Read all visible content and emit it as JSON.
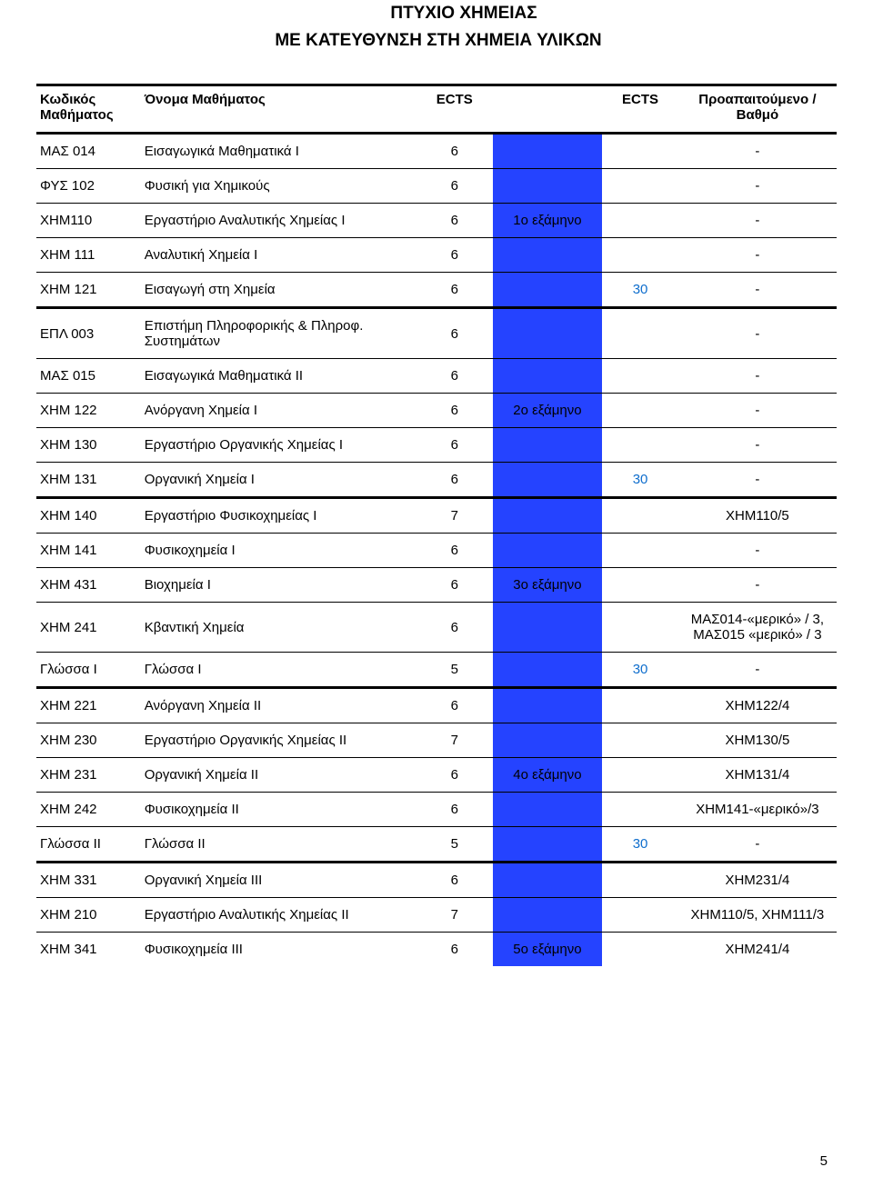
{
  "titles": {
    "main": "ΠΤΥΧΙΟ ΧΗΜΕΙΑΣ",
    "sub": "ΜΕ ΚΑΤΕΥΘΥΝΣΗ ΣΤΗ ΧΗΜΕΙΑ ΥΛΙΚΩΝ"
  },
  "headers": {
    "code": "Κωδικός Μαθήματος",
    "name": "Όνομα Μαθήματος",
    "ects1": "ECTS",
    "ects2": "ECTS",
    "pre": "Προαπαιτούμενο / Βαθμό"
  },
  "colors": {
    "semester_bg": "#2543ff",
    "link_blue": "#0f6ecd"
  },
  "rows": [
    {
      "code": "ΜΑΣ 014",
      "name": "Εισαγωγικά Μαθηματικά Ι",
      "ects": "6",
      "sem": "",
      "sum": "",
      "pre": "-",
      "top": "thick",
      "fill": true
    },
    {
      "code": "ΦΥΣ 102",
      "name": "Φυσική για Χημικούς",
      "ects": "6",
      "sem": "",
      "sum": "",
      "pre": "-",
      "top": "thin",
      "fill": true
    },
    {
      "code": "ΧΗΜ110",
      "name": "Εργαστήριο Αναλυτικής Χημείας Ι",
      "ects": "6",
      "sem": "1ο εξάμηνο",
      "sum": "",
      "pre": "-",
      "top": "thin",
      "fill": true
    },
    {
      "code": "ΧΗΜ 111",
      "name": "Αναλυτική Χημεία Ι",
      "ects": "6",
      "sem": "",
      "sum": "",
      "pre": "-",
      "top": "thin",
      "fill": true
    },
    {
      "code": "ΧΗΜ 121",
      "name": "Εισαγωγή στη Χημεία",
      "ects": "6",
      "sem": "",
      "sum": "30",
      "pre": "-",
      "top": "thin",
      "fill": true,
      "sumblue": true
    },
    {
      "code": "ΕΠΛ 003",
      "name": "Επιστήμη Πληροφορικής & Πληροφ. Συστημάτων",
      "ects": "6",
      "sem": "",
      "sum": "",
      "pre": "-",
      "top": "thick",
      "fill": true
    },
    {
      "code": "ΜΑΣ 015",
      "name": "Εισαγωγικά Μαθηματικά ΙΙ",
      "ects": "6",
      "sem": "",
      "sum": "",
      "pre": "-",
      "top": "thin",
      "fill": true
    },
    {
      "code": "ΧΗΜ 122",
      "name": "Ανόργανη Χημεία Ι",
      "ects": "6",
      "sem": "2ο εξάμηνο",
      "sum": "",
      "pre": "-",
      "top": "thin",
      "fill": true
    },
    {
      "code": "ΧΗΜ 130",
      "name": "Εργαστήριο Οργανικής Χημείας Ι",
      "ects": "6",
      "sem": "",
      "sum": "",
      "pre": "-",
      "top": "thin",
      "fill": true
    },
    {
      "code": "ΧΗΜ 131",
      "name": "Οργανική Χημεία Ι",
      "ects": "6",
      "sem": "",
      "sum": "30",
      "pre": "-",
      "top": "thin",
      "fill": true,
      "sumblue": true
    },
    {
      "code": "ΧΗΜ 140",
      "name": "Εργαστήριο Φυσικοχημείας Ι",
      "ects": "7",
      "sem": "",
      "sum": "",
      "pre": "ΧΗΜ110/5",
      "top": "thick",
      "fill": true
    },
    {
      "code": "ΧΗΜ 141",
      "name": "Φυσικοχημεία Ι",
      "ects": "6",
      "sem": "",
      "sum": "",
      "pre": "-",
      "top": "thin",
      "fill": true
    },
    {
      "code": "ΧΗΜ 431",
      "name": "Βιοχημεία Ι",
      "ects": "6",
      "sem": "3ο εξάμηνο",
      "sum": "",
      "pre": "-",
      "top": "thin",
      "fill": true
    },
    {
      "code": "ΧΗΜ 241",
      "name": "Κβαντική Χημεία",
      "ects": "6",
      "sem": "",
      "sum": "",
      "pre": "ΜΑΣ014-«μερικό» / 3, ΜΑΣ015 «μερικό» / 3",
      "top": "thin",
      "fill": true
    },
    {
      "code": "Γλώσσα Ι",
      "name": "Γλώσσα Ι",
      "ects": "5",
      "sem": "",
      "sum": "30",
      "pre": "-",
      "top": "thin",
      "fill": true,
      "sumblue": true
    },
    {
      "code": "ΧΗΜ 221",
      "name": "Ανόργανη Χημεία ΙΙ",
      "ects": "6",
      "sem": "",
      "sum": "",
      "pre": "ΧΗΜ122/4",
      "top": "thick",
      "fill": true
    },
    {
      "code": "ΧΗΜ 230",
      "name": "Εργαστήριο Οργανικής Χημείας ΙΙ",
      "ects": "7",
      "sem": "",
      "sum": "",
      "pre": "ΧΗΜ130/5",
      "top": "thin",
      "fill": true
    },
    {
      "code": "ΧΗΜ 231",
      "name": "Οργανική Χημεία ΙΙ",
      "ects": "6",
      "sem": "4ο εξάμηνο",
      "sum": "",
      "pre": "ΧΗΜ131/4",
      "top": "thin",
      "fill": true
    },
    {
      "code": "ΧΗΜ 242",
      "name": "Φυσικοχημεία ΙΙ",
      "ects": "6",
      "sem": "",
      "sum": "",
      "pre": "ΧΗΜ141-«μερικό»/3",
      "top": "thin",
      "fill": true
    },
    {
      "code": "Γλώσσα ΙΙ",
      "name": "Γλώσσα ΙΙ",
      "ects": "5",
      "sem": "",
      "sum": "30",
      "pre": "-",
      "top": "thin",
      "fill": true,
      "sumblue": true
    },
    {
      "code": "ΧΗΜ 331",
      "name": "Οργανική Χημεία ΙΙΙ",
      "ects": "6",
      "sem": "",
      "sum": "",
      "pre": "ΧΗΜ231/4",
      "top": "thick",
      "fill": true
    },
    {
      "code": "ΧΗΜ 210",
      "name": "Εργαστήριο Αναλυτικής Χημείας ΙΙ",
      "ects": "7",
      "sem": "",
      "sum": "",
      "pre": "ΧΗΜ110/5, ΧΗΜ111/3",
      "top": "thin",
      "fill": true
    },
    {
      "code": "ΧΗΜ 341",
      "name": "Φυσικοχημεία ΙΙΙ",
      "ects": "6",
      "sem": "5ο εξάμηνο",
      "sum": "",
      "pre": "ΧΗΜ241/4",
      "top": "thin",
      "fill": true
    }
  ],
  "page_number": "5"
}
